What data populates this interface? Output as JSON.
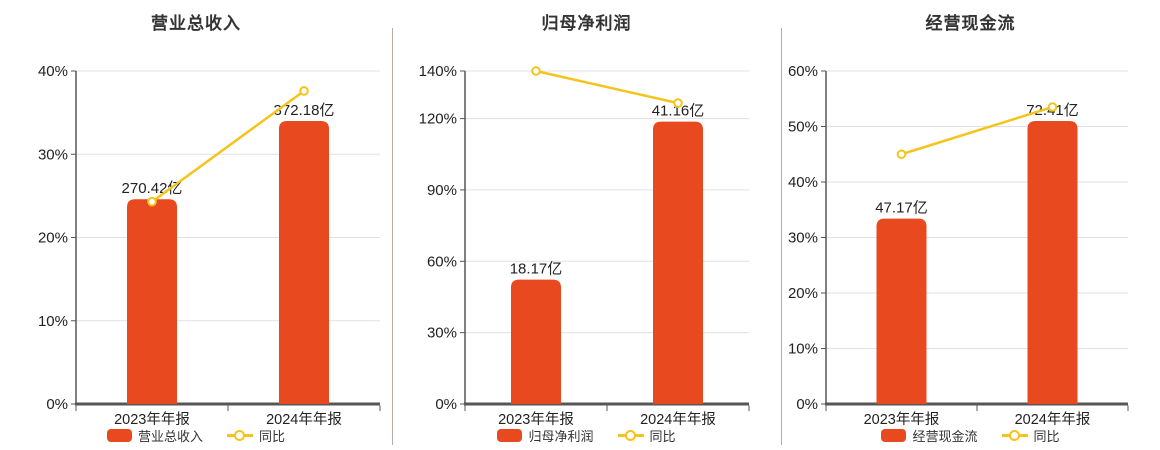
{
  "colors": {
    "bar": "#e8491f",
    "line": "#f5c41c",
    "grid": "#e0e0e8",
    "axis_line": "#565656",
    "tick_label": "#222222",
    "value_label": "#222222",
    "title": "#333333",
    "divider": "#b2aca4",
    "background": "#ffffff"
  },
  "chart_data": [
    {
      "type": "bar+line",
      "title": "营业总收入",
      "categories": [
        "2023年年报",
        "2024年年报"
      ],
      "bar": {
        "name": "营业总收入",
        "unit": "亿",
        "values_yi": [
          270.42,
          372.18
        ],
        "labels": [
          "270.42亿",
          "372.18亿"
        ],
        "top_pct": [
          24.6,
          34.0
        ]
      },
      "line": {
        "name": "同比",
        "values_pct": [
          24.3,
          37.6
        ]
      },
      "y_ticks": [
        "0%",
        "10%",
        "20%",
        "30%",
        "40%"
      ],
      "y_tick_values": [
        0,
        10,
        20,
        30,
        40
      ],
      "y_max": 40,
      "grid": true,
      "legend_position": "bottom"
    },
    {
      "type": "bar+line",
      "title": "归母净利润",
      "categories": [
        "2023年年报",
        "2024年年报"
      ],
      "bar": {
        "name": "归母净利润",
        "unit": "亿",
        "values_yi": [
          18.17,
          41.16
        ],
        "labels": [
          "18.17亿",
          "41.16亿"
        ],
        "top_pct": [
          52.3,
          118.7
        ]
      },
      "line": {
        "name": "同比",
        "values_pct": [
          140,
          126.5
        ]
      },
      "y_ticks": [
        "0%",
        "30%",
        "60%",
        "90%",
        "120%",
        "140%"
      ],
      "y_tick_values": [
        0,
        30,
        60,
        90,
        120,
        140
      ],
      "y_max": 140,
      "grid": true,
      "legend_position": "bottom"
    },
    {
      "type": "bar+line",
      "title": "经营现金流",
      "categories": [
        "2023年年报",
        "2024年年报"
      ],
      "bar": {
        "name": "经营现金流",
        "unit": "亿",
        "values_yi": [
          47.17,
          72.41
        ],
        "labels": [
          "47.17亿",
          "72.41亿"
        ],
        "top_pct": [
          33.4,
          51.0
        ]
      },
      "line": {
        "name": "同比",
        "values_pct": [
          45.0,
          53.5
        ]
      },
      "y_ticks": [
        "0%",
        "10%",
        "20%",
        "30%",
        "40%",
        "50%",
        "60%"
      ],
      "y_tick_values": [
        0,
        10,
        20,
        30,
        40,
        50,
        60
      ],
      "y_max": 60,
      "grid": true,
      "legend_position": "bottom"
    }
  ]
}
